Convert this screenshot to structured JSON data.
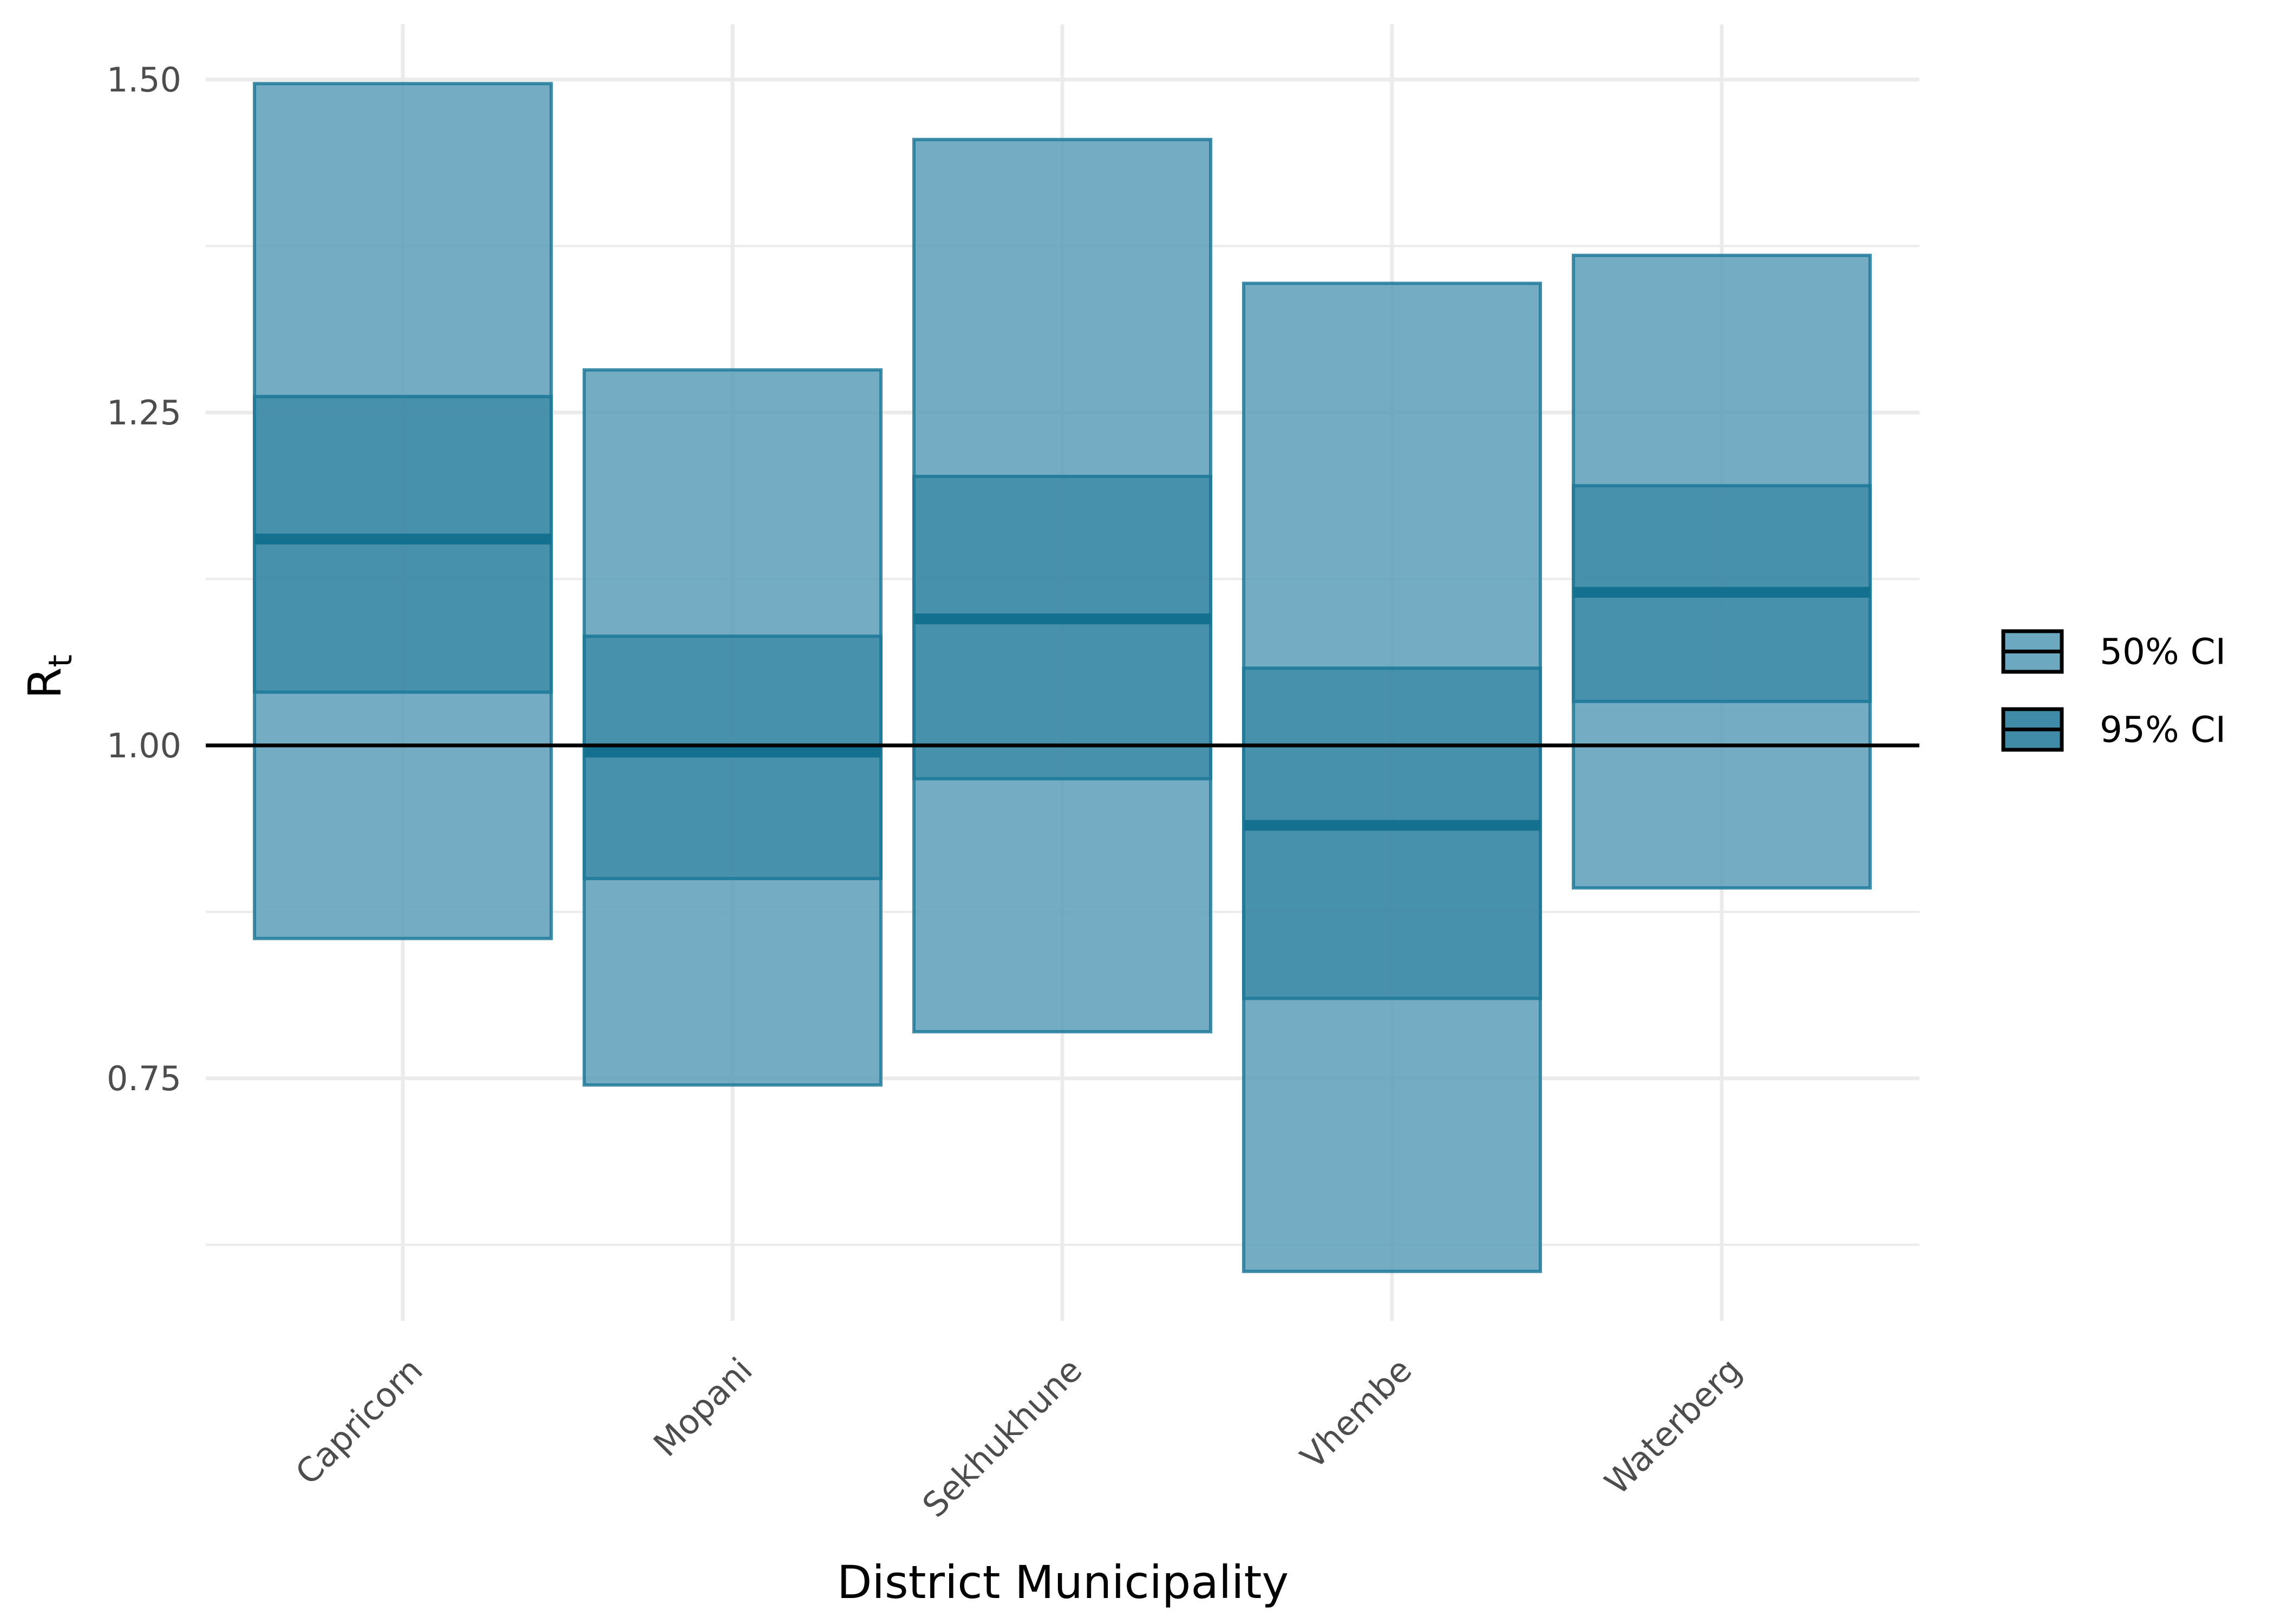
{
  "chart_data": {
    "type": "bar",
    "title": "",
    "xlabel": "District Municipality",
    "ylabel": {
      "main": "R",
      "subscript": "t"
    },
    "categories": [
      "Capricorn",
      "Mopani",
      "Sekhukhune",
      "Vhembe",
      "Waterberg"
    ],
    "median": [
      1.155,
      0.995,
      1.095,
      0.94,
      1.115
    ],
    "ci95": [
      [
        0.855,
        1.497
      ],
      [
        0.745,
        1.282
      ],
      [
        0.785,
        1.455
      ],
      [
        0.605,
        1.347
      ],
      [
        0.893,
        1.368
      ]
    ],
    "ci50": [
      [
        1.04,
        1.262
      ],
      [
        0.9,
        1.082
      ],
      [
        0.975,
        1.202
      ],
      [
        0.81,
        1.058
      ],
      [
        1.033,
        1.195
      ]
    ],
    "ylim": [
      0.575,
      1.54
    ],
    "yticks": [
      {
        "value": 0.75,
        "label": "0.75"
      },
      {
        "value": 1.0,
        "label": "1.00"
      },
      {
        "value": 1.25,
        "label": "1.25"
      },
      {
        "value": 1.5,
        "label": "1.50"
      }
    ],
    "y_minor_ticks": [
      0.625,
      0.875,
      1.125,
      1.375
    ],
    "reference_line": 1.0,
    "legend": {
      "position": "right",
      "entries": [
        {
          "label": "50% CI"
        },
        {
          "label": "95% CI"
        }
      ]
    },
    "grid": true,
    "colors": {
      "ci95_fill": "#5c9fb8",
      "ci50_fill": "#2b7f9e",
      "edge": "#1f7a9a",
      "median_line": "#14708f",
      "reference_line": "#000000",
      "grid": "#ebebeb"
    }
  }
}
